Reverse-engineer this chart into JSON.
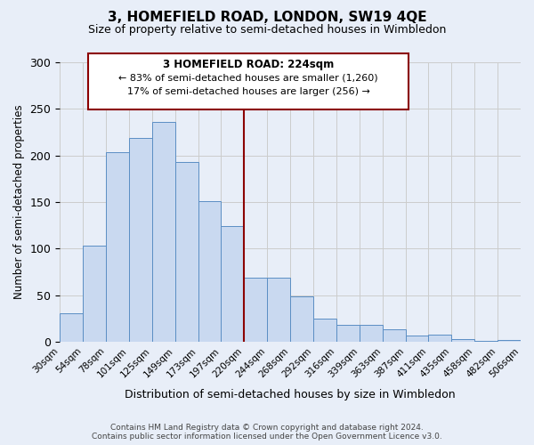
{
  "title": "3, HOMEFIELD ROAD, LONDON, SW19 4QE",
  "subtitle": "Size of property relative to semi-detached houses in Wimbledon",
  "xlabel": "Distribution of semi-detached houses by size in Wimbledon",
  "ylabel": "Number of semi-detached properties",
  "bin_edge_labels": [
    "30sqm",
    "54sqm",
    "78sqm",
    "101sqm",
    "125sqm",
    "149sqm",
    "173sqm",
    "197sqm",
    "220sqm",
    "244sqm",
    "268sqm",
    "292sqm",
    "316sqm",
    "339sqm",
    "363sqm",
    "387sqm",
    "411sqm",
    "435sqm",
    "458sqm",
    "482sqm",
    "506sqm"
  ],
  "bar_values": [
    31,
    103,
    204,
    219,
    236,
    193,
    151,
    124,
    69,
    69,
    49,
    25,
    18,
    18,
    14,
    7,
    8,
    3,
    1,
    2
  ],
  "bar_color": "#c9d9f0",
  "bar_edge_color": "#5b8ec4",
  "grid_color": "#cccccc",
  "vline_x": 8,
  "vline_color": "#8b0000",
  "annotation_title": "3 HOMEFIELD ROAD: 224sqm",
  "annotation_line1": "← 83% of semi-detached houses are smaller (1,260)",
  "annotation_line2": "17% of semi-detached houses are larger (256) →",
  "annotation_box_color": "#8b0000",
  "footer_line1": "Contains HM Land Registry data © Crown copyright and database right 2024.",
  "footer_line2": "Contains public sector information licensed under the Open Government Licence v3.0.",
  "ylim": [
    0,
    300
  ],
  "yticks": [
    0,
    50,
    100,
    150,
    200,
    250,
    300
  ],
  "background_color": "#e8eef8"
}
